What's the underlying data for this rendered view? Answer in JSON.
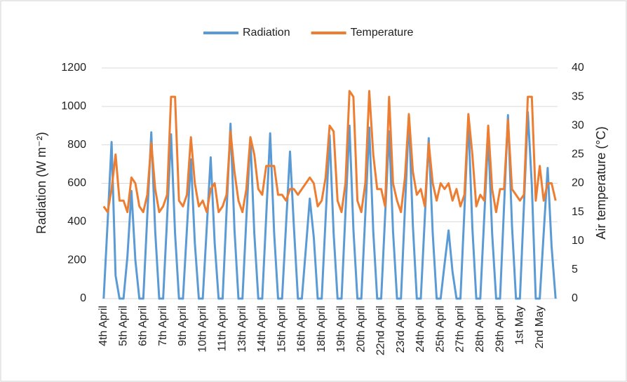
{
  "chart_data": {
    "type": "line",
    "y_label": "Radiation (W m⁻²)",
    "y2_label": "Air temperature (°C)",
    "categories": [
      "4th April",
      null,
      null,
      null,
      null,
      "5th April",
      null,
      null,
      null,
      null,
      "6th April",
      null,
      null,
      null,
      null,
      "7th April",
      null,
      null,
      null,
      null,
      "9th April",
      null,
      null,
      null,
      null,
      "10th April",
      null,
      null,
      null,
      null,
      "11th April",
      null,
      null,
      null,
      null,
      "13th April",
      null,
      null,
      null,
      null,
      "14th April",
      null,
      null,
      null,
      null,
      "15th April",
      null,
      null,
      null,
      null,
      "16th April",
      null,
      null,
      null,
      null,
      "18th April",
      null,
      null,
      null,
      null,
      "19th April",
      null,
      null,
      null,
      null,
      "20th April",
      null,
      null,
      null,
      null,
      "22nd April",
      null,
      null,
      null,
      null,
      "23rd April",
      null,
      null,
      null,
      null,
      "24th April",
      null,
      null,
      null,
      null,
      "25th April",
      null,
      null,
      null,
      null,
      "27th April",
      null,
      null,
      null,
      null,
      "28th April",
      null,
      null,
      null,
      null,
      "29th April",
      null,
      null,
      null,
      null,
      "1st May",
      null,
      null,
      null,
      null,
      "2nd May",
      null,
      null,
      null,
      null
    ],
    "series": [
      {
        "name": "Radiation",
        "color": "#5b9bd5",
        "values": [
          0,
          400,
          815,
          120,
          0,
          0,
          220,
          560,
          200,
          0,
          0,
          430,
          865,
          350,
          0,
          0,
          420,
          855,
          340,
          0,
          0,
          360,
          725,
          290,
          0,
          0,
          370,
          735,
          290,
          0,
          0,
          450,
          910,
          360,
          0,
          0,
          420,
          840,
          340,
          0,
          0,
          430,
          860,
          340,
          0,
          0,
          380,
          765,
          370,
          0,
          0,
          260,
          520,
          320,
          0,
          0,
          420,
          850,
          340,
          0,
          0,
          450,
          900,
          360,
          0,
          0,
          440,
          890,
          350,
          0,
          0,
          430,
          870,
          350,
          0,
          0,
          470,
          940,
          380,
          0,
          0,
          420,
          835,
          340,
          0,
          0,
          180,
          355,
          140,
          0,
          0,
          460,
          930,
          370,
          0,
          0,
          420,
          845,
          340,
          0,
          0,
          480,
          955,
          380,
          0,
          0,
          480,
          970,
          590,
          0,
          0,
          340,
          680,
          270,
          0
        ]
      },
      {
        "name": "Temperature",
        "color": "#ed7d31",
        "axis": "y2",
        "values": [
          16,
          15,
          19,
          25,
          17,
          17,
          15,
          21,
          20,
          16,
          15,
          18,
          27,
          19,
          15,
          16,
          18,
          35,
          35,
          17,
          16,
          18,
          28,
          20,
          16,
          17,
          15,
          19,
          20,
          15,
          16,
          18,
          29,
          22,
          17,
          15,
          19,
          28,
          25,
          19,
          18,
          23,
          23,
          23,
          18,
          18,
          17,
          19,
          19,
          18,
          19,
          20,
          21,
          20,
          16,
          17,
          21,
          30,
          29,
          17,
          15,
          20,
          36,
          35,
          17,
          15,
          20,
          36,
          25,
          19,
          19,
          16,
          35,
          20,
          17,
          15,
          21,
          32,
          22,
          18,
          19,
          16,
          27,
          20,
          17,
          20,
          19,
          20,
          17,
          19,
          16,
          18,
          32,
          25,
          16,
          18,
          17,
          30,
          19,
          15,
          19,
          19,
          31,
          19,
          18,
          17,
          18,
          35,
          35,
          17,
          23,
          17,
          20,
          20,
          17
        ]
      }
    ],
    "ylim": [
      0,
      1200
    ],
    "yticks": [
      0,
      200,
      400,
      600,
      800,
      1000,
      1200
    ],
    "y2lim": [
      0,
      40
    ],
    "y2ticks": [
      0,
      5,
      10,
      15,
      20,
      25,
      30,
      35,
      40
    ],
    "grid": true,
    "legend": "top"
  }
}
